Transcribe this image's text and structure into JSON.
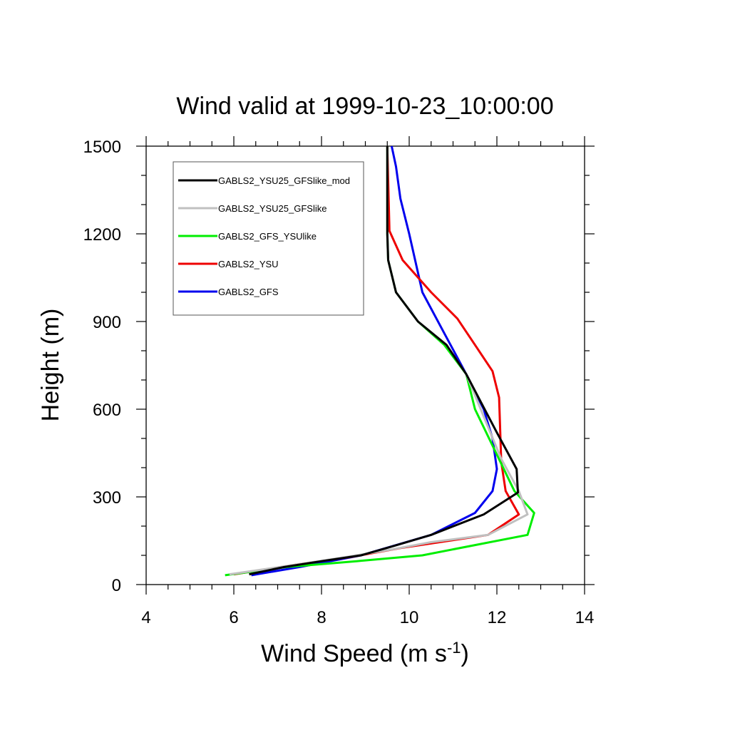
{
  "chart_data": {
    "type": "line",
    "title": "Wind valid at 1999-10-23_10:00:00",
    "xlabel": "Wind Speed (m s",
    "xlabel_sup": "-1",
    "xlabel_close": ")",
    "ylabel": "Height (m)",
    "xlim": [
      4,
      14
    ],
    "ylim": [
      0,
      1500
    ],
    "xticks": [
      "4",
      "6",
      "8",
      "10",
      "12",
      "14"
    ],
    "yticks": [
      "0",
      "300",
      "600",
      "900",
      "1200",
      "1500"
    ],
    "grid": false,
    "legend_position": "top-left",
    "series": [
      {
        "name": "GABLS2_YSU25_GFSlike_mod",
        "color": "#000000",
        "x": [
          6.35,
          7.15,
          8.0,
          8.9,
          9.6,
          10.5,
          11.7,
          12.48,
          12.45,
          12.0,
          11.3,
          10.85,
          10.2,
          9.7,
          9.52,
          9.5,
          9.5,
          9.5
        ],
        "y": [
          35,
          60,
          80,
          100,
          130,
          170,
          240,
          315,
          395,
          520,
          720,
          820,
          900,
          1000,
          1110,
          1200,
          1300,
          1500
        ]
      },
      {
        "name": "GABLS2_YSU25_GFSlike",
        "color": "#c0c0c0",
        "x": [
          5.9,
          7.5,
          8.6,
          9.6,
          10.5,
          11.8,
          12.7,
          12.5,
          12.1,
          11.3,
          10.85,
          10.2,
          9.7,
          9.52,
          9.5,
          9.5
        ],
        "y": [
          35,
          70,
          95,
          120,
          145,
          170,
          240,
          320,
          430,
          720,
          820,
          900,
          1000,
          1110,
          1200,
          1500
        ]
      },
      {
        "name": "GABLS2_GFS_YSUlike",
        "color": "#00ee00",
        "x": [
          5.8,
          7.2,
          8.8,
          10.3,
          11.5,
          12.7,
          12.85,
          12.4,
          11.5,
          11.3,
          10.8,
          10.2,
          9.7,
          9.52,
          9.5,
          9.5
        ],
        "y": [
          32,
          60,
          80,
          100,
          135,
          170,
          245,
          320,
          600,
          720,
          820,
          900,
          1000,
          1110,
          1200,
          1500
        ]
      },
      {
        "name": "GABLS2_YSU",
        "color": "#ee0000",
        "x": [
          6.0,
          7.5,
          8.7,
          9.8,
          11.8,
          12.5,
          12.2,
          12.1,
          12.05,
          11.9,
          11.5,
          11.1,
          10.5,
          9.85,
          9.55,
          9.5
        ],
        "y": [
          35,
          70,
          95,
          125,
          170,
          240,
          320,
          420,
          640,
          730,
          820,
          910,
          1000,
          1110,
          1210,
          1500
        ]
      },
      {
        "name": "GABLS2_GFS",
        "color": "#0000ee",
        "x": [
          6.4,
          7.5,
          8.9,
          10.5,
          11.5,
          11.9,
          12.0,
          11.9,
          11.7,
          11.3,
          10.8,
          10.3,
          10.0,
          9.8,
          9.7,
          9.6
        ],
        "y": [
          32,
          60,
          100,
          170,
          245,
          320,
          395,
          500,
          600,
          720,
          860,
          1000,
          1200,
          1320,
          1430,
          1500
        ]
      }
    ]
  }
}
